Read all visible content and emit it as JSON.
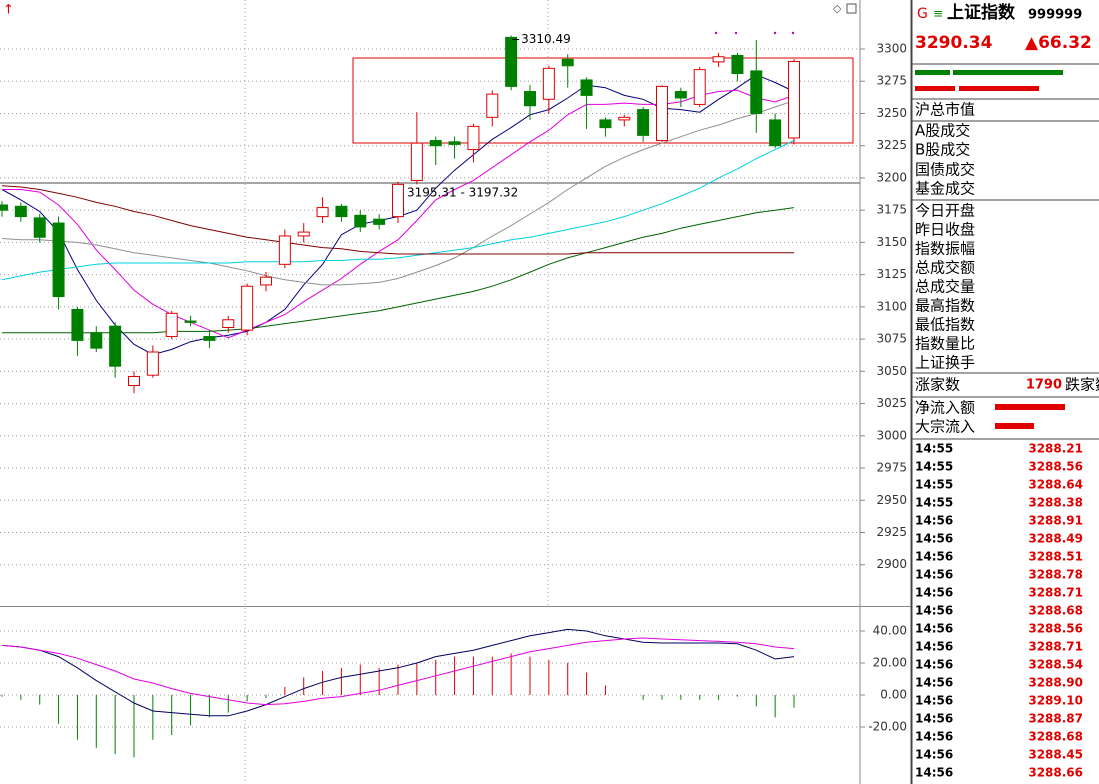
{
  "chart_data": [
    {
      "type": "candlestick",
      "open": [
        3179,
        3178,
        3169,
        3165,
        3098,
        3080,
        3085,
        3039,
        3047,
        3077,
        3089,
        3077,
        3084,
        3082,
        3117,
        3133,
        3155,
        3170,
        3178,
        3171,
        3168,
        3170,
        3198,
        3229,
        3228,
        3222,
        3247,
        3309,
        3267,
        3261,
        3292,
        3276,
        3245,
        3245,
        3253,
        3229,
        3267,
        3257,
        3290,
        3295,
        3283,
        3245,
        3231
      ],
      "high": [
        3182,
        3181,
        3172,
        3170,
        3100,
        3085,
        3088,
        3050,
        3070,
        3097,
        3093,
        3082,
        3093,
        3118,
        3127,
        3160,
        3165,
        3185,
        3180,
        3175,
        3172,
        3197,
        3251,
        3232,
        3232,
        3242,
        3268,
        3310.49,
        3272,
        3287,
        3296,
        3278,
        3247,
        3249,
        3255,
        3272,
        3270,
        3286,
        3297,
        3297,
        3307,
        3250,
        3292
      ],
      "low": [
        3170,
        3166,
        3150,
        3098,
        3062,
        3065,
        3045,
        3033,
        3045,
        3075,
        3085,
        3068,
        3080,
        3078,
        3112,
        3130,
        3150,
        3165,
        3166,
        3158,
        3160,
        3165,
        3195,
        3210,
        3215,
        3212,
        3240,
        3268,
        3245,
        3250,
        3270,
        3238,
        3232,
        3240,
        3228,
        3228,
        3255,
        3255,
        3286,
        3275,
        3235,
        3223,
        3226
      ],
      "close": [
        3175,
        3170,
        3154,
        3108,
        3074,
        3068,
        3054,
        3046,
        3065,
        3095,
        3088,
        3074,
        3090,
        3116,
        3123,
        3155,
        3158,
        3177,
        3170,
        3162,
        3164,
        3195,
        3227,
        3225,
        3226,
        3240,
        3265,
        3271,
        3256,
        3285,
        3287,
        3264,
        3239,
        3247,
        3233,
        3271,
        3262,
        3284,
        3294,
        3281,
        3250,
        3225,
        3290.34
      ],
      "up_color": "#e00000",
      "down_color": "#008000",
      "series": [
        {
          "color": "#000080",
          "values": [
            3191,
            3183,
            3174,
            3158,
            3129,
            3105,
            3086,
            3071,
            3063,
            3067,
            3073,
            3076,
            3078,
            3081,
            3088,
            3098,
            3117,
            3133,
            3156,
            3164,
            3167,
            3170,
            3175,
            3192,
            3206,
            3218,
            3230,
            3239,
            3249,
            3253,
            3262,
            3272,
            3270,
            3264,
            3261,
            3254,
            3253,
            3251,
            3261,
            3270,
            3280,
            3274,
            3267
          ]
        },
        {
          "color": "#e000e0",
          "values": [
            3191,
            3191,
            3189,
            3179,
            3164,
            3144,
            3129,
            3113,
            3102,
            3094,
            3088,
            3082,
            3076,
            3082,
            3088,
            3094,
            3104,
            3113,
            3122,
            3133,
            3143,
            3152,
            3167,
            3183,
            3191,
            3198,
            3208,
            3218,
            3228,
            3237,
            3249,
            3257,
            3257,
            3258,
            3257,
            3257,
            3259,
            3264,
            3267,
            3268,
            3262,
            3259,
            3264
          ]
        },
        {
          "color": "#909090",
          "values": [
            3153,
            3152,
            3152,
            3151,
            3150,
            3148,
            3145,
            3142,
            3140,
            3138,
            3136,
            3134,
            3131,
            3128,
            3124,
            3121,
            3119,
            3117,
            3117,
            3118,
            3119,
            3122,
            3127,
            3132,
            3138,
            3146,
            3155,
            3163,
            3172,
            3181,
            3191,
            3200,
            3209,
            3216,
            3222,
            3227,
            3232,
            3237,
            3241,
            3246,
            3250,
            3255,
            3260
          ]
        },
        {
          "color": "#00d0e0",
          "values": [
            3121,
            3124,
            3127,
            3129,
            3131,
            3133,
            3134,
            3134,
            3134,
            3134,
            3134,
            3134,
            3134,
            3135,
            3135,
            3135,
            3135,
            3136,
            3136,
            3137,
            3137,
            3138,
            3140,
            3142,
            3144,
            3146,
            3149,
            3152,
            3154,
            3157,
            3160,
            3163,
            3166,
            3170,
            3175,
            3180,
            3186,
            3192,
            3200,
            3207,
            3215,
            3222,
            3229
          ]
        },
        {
          "color": "#006400",
          "values": [
            3080,
            3080,
            3080,
            3080,
            3080,
            3080,
            3080,
            3080,
            3080,
            3081,
            3081,
            3081,
            3082,
            3083,
            3085,
            3087,
            3089,
            3091,
            3093,
            3095,
            3097,
            3100,
            3103,
            3106,
            3109,
            3112,
            3116,
            3121,
            3127,
            3133,
            3138,
            3142,
            3146,
            3150,
            3154,
            3157,
            3161,
            3164,
            3167,
            3170,
            3173,
            3175,
            3177
          ]
        },
        {
          "color": "#800000",
          "values": [
            3194,
            3193,
            3191,
            3188,
            3185,
            3181,
            3178,
            3174,
            3171,
            3167,
            3163,
            3160,
            3157,
            3154,
            3152,
            3150,
            3148,
            3146,
            3145,
            3143,
            3142,
            3141,
            3141,
            3141,
            3141,
            3141,
            3141,
            3141,
            3141,
            3141,
            3141,
            3142,
            3142,
            3142,
            3142,
            3142,
            3142,
            3142,
            3142,
            3142,
            3142,
            3142,
            3142
          ]
        }
      ],
      "annotations": [
        "3310.49",
        "3195.31 - 3197.32"
      ],
      "ylim": [
        2868,
        3338
      ],
      "yticks": [
        2900,
        2925,
        2950,
        2975,
        3000,
        3025,
        3050,
        3075,
        3100,
        3125,
        3150,
        3175,
        3200,
        3225,
        3250,
        3275,
        3300
      ],
      "grid": true
    },
    {
      "type": "macd",
      "hist": [
        -1,
        -3,
        -6,
        -18,
        -28,
        -33,
        -37,
        -39,
        -28,
        -25,
        -19,
        -14,
        -11,
        -4,
        -2,
        5,
        11,
        15,
        17,
        19,
        17,
        19,
        20,
        22,
        24,
        24,
        24,
        26,
        24,
        22,
        20,
        14,
        6,
        0,
        -3,
        -3,
        -3,
        -3,
        -3,
        -1,
        -7,
        -14,
        -8
      ],
      "up_color": "#e00000",
      "down_color": "#008000",
      "series": [
        {
          "color": "#000060",
          "values": [
            31,
            30,
            28,
            24,
            17,
            9,
            2,
            -5,
            -10,
            -11,
            -12,
            -13,
            -13,
            -10,
            -6,
            -1,
            4,
            8,
            11,
            13,
            15,
            17,
            20,
            24,
            26,
            28,
            31,
            34,
            37,
            39,
            41,
            40,
            37,
            35,
            33,
            32.5,
            32.5,
            32.5,
            32.5,
            32,
            28,
            22.5,
            24
          ]
        },
        {
          "color": "#e000e0",
          "values": [
            31,
            30,
            28,
            26,
            23,
            19,
            15,
            10,
            7.5,
            4,
            1,
            -1,
            -3,
            -5,
            -6,
            -5.5,
            -4,
            -2,
            -1,
            1,
            3,
            6,
            9,
            12,
            15,
            18,
            21,
            24,
            27,
            29,
            31,
            33,
            34,
            35,
            35.6,
            35,
            34.5,
            34,
            33.5,
            33,
            32,
            30,
            29
          ]
        }
      ],
      "ylim": [
        -55,
        55
      ],
      "yticks": [
        {
          "value": -20,
          "label": "-20.00"
        },
        {
          "value": 0,
          "label": "0.00"
        },
        {
          "value": 20,
          "label": "20.00"
        },
        {
          "value": 40,
          "label": "40.00"
        }
      ],
      "grid": true
    }
  ],
  "panel": {
    "code_letter": "G",
    "name": "上证指数",
    "code": "999999",
    "price": "3290.34",
    "change": "▲66.32",
    "labels": [
      "沪总市值",
      "A股成交",
      "B股成交",
      "国债成交",
      "基金成交",
      "今日开盘",
      "昨日收盘",
      "指数振幅",
      "总成交额",
      "总成交量",
      "最高指数",
      "最低指数",
      "指数量比",
      "上证换手"
    ],
    "up_count_label": "涨家数",
    "up_count": 1790,
    "down_count_label": "跌家数",
    "flow_labels": [
      "净流入额",
      "大宗流入"
    ],
    "ticks": {
      "times": [
        "14:55",
        "14:55",
        "14:55",
        "14:55",
        "14:56",
        "14:56",
        "14:56",
        "14:56",
        "14:56",
        "14:56",
        "14:56",
        "14:56",
        "14:56",
        "14:56",
        "14:56",
        "14:56",
        "14:56",
        "14:56",
        "14:56"
      ],
      "prices": [
        "3288.21",
        "3288.56",
        "3288.64",
        "3288.38",
        "3288.91",
        "3288.49",
        "3288.51",
        "3288.78",
        "3288.71",
        "3288.68",
        "3288.56",
        "3288.71",
        "3288.54",
        "3288.90",
        "3289.10",
        "3288.87",
        "3288.68",
        "3288.45",
        "3288.66"
      ]
    }
  }
}
